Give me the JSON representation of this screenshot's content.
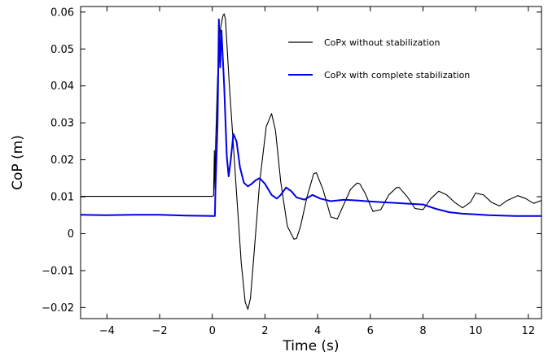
{
  "chart_data": {
    "type": "line",
    "xlabel": "Time (s)",
    "ylabel": "CoP (m)",
    "xlim": [
      -5,
      12.5
    ],
    "ylim": [
      -0.023,
      0.0615
    ],
    "xticks": [
      -4,
      -2,
      0,
      2,
      4,
      6,
      8,
      10,
      12
    ],
    "xtick_labels": [
      "−4",
      "−2",
      "0",
      "2",
      "4",
      "6",
      "8",
      "10",
      "12"
    ],
    "yticks": [
      -0.02,
      -0.01,
      0,
      0.01,
      0.02,
      0.03,
      0.04,
      0.05,
      0.06
    ],
    "ytick_labels": [
      "−0.02",
      "−0.01",
      "0",
      "0.01",
      "0.02",
      "0.03",
      "0.04",
      "0.05",
      "0.06"
    ],
    "grid": false,
    "legend_position": "top-right",
    "series": [
      {
        "name": "CoPx without stabilization",
        "color": "#000000",
        "x": [
          -5,
          -4,
          -3,
          -2,
          -1,
          0,
          0.05,
          0.08,
          0.1,
          0.13,
          0.2,
          0.3,
          0.4,
          0.45,
          0.5,
          0.55,
          0.65,
          0.8,
          0.95,
          1.1,
          1.25,
          1.35,
          1.45,
          1.6,
          1.8,
          2.05,
          2.25,
          2.4,
          2.6,
          2.85,
          3.1,
          3.2,
          3.35,
          3.6,
          3.85,
          3.95,
          4.2,
          4.5,
          4.75,
          5.0,
          5.25,
          5.5,
          5.6,
          5.8,
          6.1,
          6.4,
          6.7,
          7.0,
          7.1,
          7.4,
          7.7,
          8.0,
          8.3,
          8.6,
          8.9,
          9.2,
          9.5,
          9.8,
          10.0,
          10.3,
          10.6,
          10.9,
          11.2,
          11.6,
          11.9,
          12.2,
          12.5
        ],
        "y": [
          0.0101,
          0.0101,
          0.0101,
          0.0101,
          0.0101,
          0.0101,
          0.0103,
          0.0225,
          0.012,
          0.025,
          0.042,
          0.055,
          0.059,
          0.0595,
          0.058,
          0.052,
          0.04,
          0.024,
          0.008,
          -0.008,
          -0.0185,
          -0.0205,
          -0.0175,
          -0.004,
          0.014,
          0.029,
          0.0325,
          0.028,
          0.014,
          0.002,
          -0.0015,
          -0.0013,
          0.002,
          0.01,
          0.0162,
          0.0165,
          0.012,
          0.0045,
          0.004,
          0.008,
          0.012,
          0.0137,
          0.0135,
          0.011,
          0.006,
          0.0065,
          0.0105,
          0.0125,
          0.0125,
          0.01,
          0.0068,
          0.0065,
          0.0095,
          0.0115,
          0.0105,
          0.0085,
          0.007,
          0.0085,
          0.011,
          0.0105,
          0.0085,
          0.0075,
          0.009,
          0.0103,
          0.0095,
          0.0082,
          0.009
        ]
      },
      {
        "name": "CoPx with complete stabilization",
        "color": "#0000e6",
        "x": [
          -5,
          -4,
          -3,
          -2,
          -1,
          0,
          0.1,
          0.12,
          0.2,
          0.25,
          0.3,
          0.35,
          0.45,
          0.55,
          0.62,
          0.7,
          0.8,
          0.92,
          1.05,
          1.2,
          1.35,
          1.5,
          1.65,
          1.8,
          2.0,
          2.25,
          2.45,
          2.6,
          2.8,
          3.0,
          3.2,
          3.5,
          3.8,
          4.1,
          4.5,
          5.0,
          5.5,
          6.0,
          6.5,
          7.0,
          7.5,
          8.0,
          8.5,
          9.0,
          9.5,
          10.0,
          10.5,
          11.0,
          11.5,
          12.0,
          12.5
        ],
        "y": [
          0.0051,
          0.005,
          0.0051,
          0.0051,
          0.0049,
          0.0048,
          0.0048,
          0.012,
          0.03,
          0.058,
          0.045,
          0.055,
          0.04,
          0.021,
          0.0155,
          0.02,
          0.027,
          0.025,
          0.018,
          0.0138,
          0.0128,
          0.0135,
          0.0145,
          0.015,
          0.0135,
          0.0105,
          0.0095,
          0.0105,
          0.0125,
          0.0115,
          0.0098,
          0.0092,
          0.0105,
          0.0095,
          0.0088,
          0.0092,
          0.009,
          0.0087,
          0.0085,
          0.0083,
          0.0081,
          0.0079,
          0.0067,
          0.0058,
          0.0054,
          0.0052,
          0.005,
          0.0049,
          0.0048,
          0.0048,
          0.0048
        ]
      }
    ]
  }
}
